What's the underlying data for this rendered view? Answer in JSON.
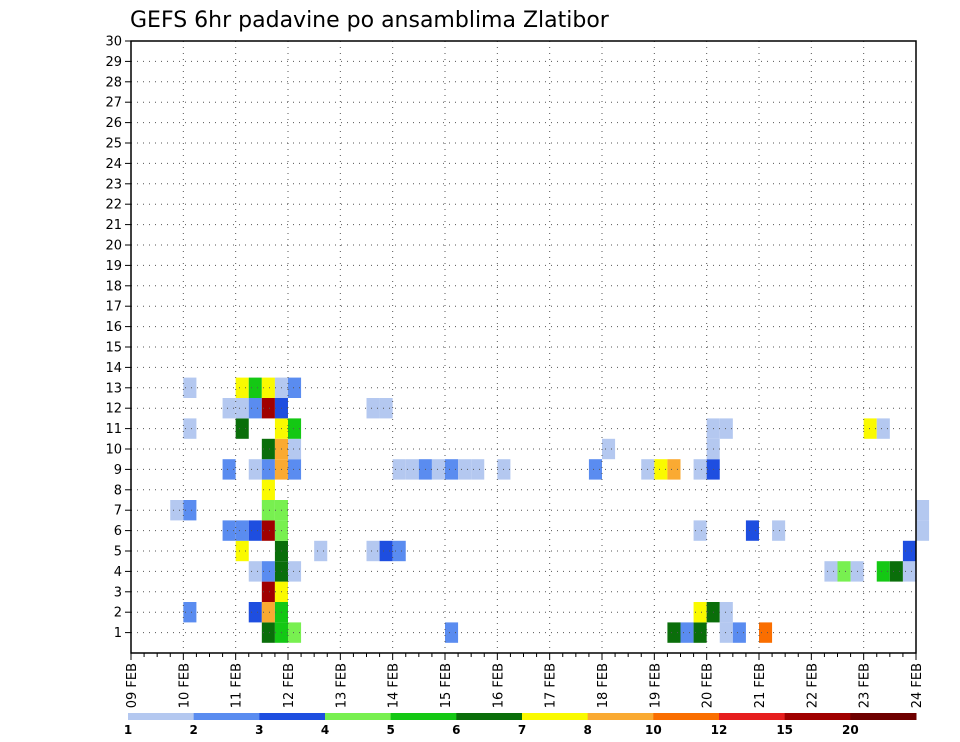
{
  "chart_data": {
    "type": "heatmap",
    "title": "GEFS 6hr padavine po ansamblima Zlatibor",
    "xlabel": "",
    "ylabel": "",
    "x_ticks": [
      "09 FEB",
      "10 FEB",
      "11 FEB",
      "12 FEB",
      "13 FEB",
      "14 FEB",
      "15 FEB",
      "16 FEB",
      "17 FEB",
      "18 FEB",
      "19 FEB",
      "20 FEB",
      "21 FEB",
      "22 FEB",
      "23 FEB",
      "24 FEB"
    ],
    "y_ticks": [
      1,
      2,
      3,
      4,
      5,
      6,
      7,
      8,
      9,
      10,
      11,
      12,
      13,
      14,
      15,
      16,
      17,
      18,
      19,
      20,
      21,
      22,
      23,
      24,
      25,
      26,
      27,
      28,
      29,
      30
    ],
    "ylim": [
      0,
      30
    ],
    "grid": true,
    "colorbar": {
      "levels": [
        "1",
        "2",
        "3",
        "4",
        "5",
        "6",
        "7",
        "8",
        "10",
        "12",
        "15",
        "20"
      ],
      "colors": [
        "#b4c8f0",
        "#5a8cf0",
        "#1e4ee0",
        "#78f050",
        "#14c814",
        "#0a6e0a",
        "#fafa00",
        "#faaa32",
        "#fa6e00",
        "#e61e1e",
        "#a00000",
        "#6e0000"
      ]
    },
    "cells": [
      {
        "x": "11 FEB 12z",
        "member": 0,
        "class": 5
      },
      {
        "x": "11 FEB 18z",
        "member": 0,
        "class": 4
      },
      {
        "x": "12 FEB 00z",
        "member": 0,
        "class": 3
      },
      {
        "x": "15 FEB 00z",
        "member": 0,
        "class": 1
      },
      {
        "x": "19 FEB 06z",
        "member": 0,
        "class": 5
      },
      {
        "x": "19 FEB 12z",
        "member": 0,
        "class": 1
      },
      {
        "x": "19 FEB 18z",
        "member": 0,
        "class": 5
      },
      {
        "x": "20 FEB 06z",
        "member": 0,
        "class": 0
      },
      {
        "x": "20 FEB 12z",
        "member": 0,
        "class": 1
      },
      {
        "x": "21 FEB 00z",
        "member": 0,
        "class": 8
      },
      {
        "x": "10 FEB 00z",
        "member": 1,
        "class": 1
      },
      {
        "x": "11 FEB 06z",
        "member": 1,
        "class": 2
      },
      {
        "x": "11 FEB 12z",
        "member": 1,
        "class": 7
      },
      {
        "x": "11 FEB 18z",
        "member": 1,
        "class": 4
      },
      {
        "x": "19 FEB 18z",
        "member": 1,
        "class": 6
      },
      {
        "x": "20 FEB 00z",
        "member": 1,
        "class": 5
      },
      {
        "x": "20 FEB 06z",
        "member": 1,
        "class": 0
      },
      {
        "x": "11 FEB 12z",
        "member": 2,
        "class": 10
      },
      {
        "x": "11 FEB 18z",
        "member": 2,
        "class": 6
      },
      {
        "x": "11 FEB 06z",
        "member": 3,
        "class": 0
      },
      {
        "x": "11 FEB 12z",
        "member": 3,
        "class": 1
      },
      {
        "x": "11 FEB 18z",
        "member": 3,
        "class": 5
      },
      {
        "x": "12 FEB 00z",
        "member": 3,
        "class": 0
      },
      {
        "x": "22 FEB 06z",
        "member": 3,
        "class": 0
      },
      {
        "x": "22 FEB 12z",
        "member": 3,
        "class": 3
      },
      {
        "x": "22 FEB 18z",
        "member": 3,
        "class": 0
      },
      {
        "x": "23 FEB 06z",
        "member": 3,
        "class": 4
      },
      {
        "x": "23 FEB 12z",
        "member": 3,
        "class": 5
      },
      {
        "x": "23 FEB 18z",
        "member": 3,
        "class": 0
      },
      {
        "x": "11 FEB 00z",
        "member": 4,
        "class": 6
      },
      {
        "x": "11 FEB 18z",
        "member": 4,
        "class": 5
      },
      {
        "x": "12 FEB 12z",
        "member": 4,
        "class": 0
      },
      {
        "x": "13 FEB 12z",
        "member": 4,
        "class": 0
      },
      {
        "x": "13 FEB 18z",
        "member": 4,
        "class": 2
      },
      {
        "x": "14 FEB 00z",
        "member": 4,
        "class": 1
      },
      {
        "x": "23 FEB 18z",
        "member": 4,
        "class": 2
      },
      {
        "x": "10 FEB 18z",
        "member": 5,
        "class": 1
      },
      {
        "x": "11 FEB 00z",
        "member": 5,
        "class": 1
      },
      {
        "x": "11 FEB 06z",
        "member": 5,
        "class": 2
      },
      {
        "x": "11 FEB 12z",
        "member": 5,
        "class": 10
      },
      {
        "x": "11 FEB 18z",
        "member": 5,
        "class": 3
      },
      {
        "x": "19 FEB 18z",
        "member": 5,
        "class": 0
      },
      {
        "x": "20 FEB 18z",
        "member": 5,
        "class": 2
      },
      {
        "x": "21 FEB 06z",
        "member": 5,
        "class": 0
      },
      {
        "x": "24 FEB 00z",
        "member": 5,
        "class": 0
      },
      {
        "x": "09 FEB 18z",
        "member": 6,
        "class": 0
      },
      {
        "x": "10 FEB 00z",
        "member": 6,
        "class": 1
      },
      {
        "x": "11 FEB 12z",
        "member": 6,
        "class": 3
      },
      {
        "x": "11 FEB 18z",
        "member": 6,
        "class": 3
      },
      {
        "x": "24 FEB 00z",
        "member": 6,
        "class": 0
      },
      {
        "x": "11 FEB 12z",
        "member": 7,
        "class": 6
      },
      {
        "x": "10 FEB 18z",
        "member": 8,
        "class": 1
      },
      {
        "x": "11 FEB 06z",
        "member": 8,
        "class": 0
      },
      {
        "x": "11 FEB 12z",
        "member": 8,
        "class": 1
      },
      {
        "x": "11 FEB 18z",
        "member": 8,
        "class": 7
      },
      {
        "x": "12 FEB 00z",
        "member": 8,
        "class": 1
      },
      {
        "x": "14 FEB 00z",
        "member": 8,
        "class": 0
      },
      {
        "x": "14 FEB 06z",
        "member": 8,
        "class": 0
      },
      {
        "x": "14 FEB 12z",
        "member": 8,
        "class": 1
      },
      {
        "x": "14 FEB 18z",
        "member": 8,
        "class": 0
      },
      {
        "x": "15 FEB 00z",
        "member": 8,
        "class": 1
      },
      {
        "x": "15 FEB 06z",
        "member": 8,
        "class": 0
      },
      {
        "x": "15 FEB 12z",
        "member": 8,
        "class": 0
      },
      {
        "x": "16 FEB 00z",
        "member": 8,
        "class": 0
      },
      {
        "x": "17 FEB 18z",
        "member": 8,
        "class": 1
      },
      {
        "x": "18 FEB 18z",
        "member": 8,
        "class": 0
      },
      {
        "x": "19 FEB 00z",
        "member": 8,
        "class": 6
      },
      {
        "x": "19 FEB 06z",
        "member": 8,
        "class": 7
      },
      {
        "x": "19 FEB 18z",
        "member": 8,
        "class": 0
      },
      {
        "x": "20 FEB 00z",
        "member": 8,
        "class": 2
      },
      {
        "x": "11 FEB 12z",
        "member": 9,
        "class": 5
      },
      {
        "x": "11 FEB 18z",
        "member": 9,
        "class": 7
      },
      {
        "x": "12 FEB 00z",
        "member": 9,
        "class": 0
      },
      {
        "x": "18 FEB 00z",
        "member": 9,
        "class": 0
      },
      {
        "x": "20 FEB 00z",
        "member": 9,
        "class": 0
      },
      {
        "x": "10 FEB 00z",
        "member": 10,
        "class": 0
      },
      {
        "x": "11 FEB 00z",
        "member": 10,
        "class": 5
      },
      {
        "x": "11 FEB 18z",
        "member": 10,
        "class": 6
      },
      {
        "x": "12 FEB 00z",
        "member": 10,
        "class": 4
      },
      {
        "x": "20 FEB 00z",
        "member": 10,
        "class": 0
      },
      {
        "x": "20 FEB 06z",
        "member": 10,
        "class": 0
      },
      {
        "x": "23 FEB 00z",
        "member": 10,
        "class": 6
      },
      {
        "x": "23 FEB 06z",
        "member": 10,
        "class": 0
      },
      {
        "x": "10 FEB 18z",
        "member": 11,
        "class": 0
      },
      {
        "x": "11 FEB 00z",
        "member": 11,
        "class": 0
      },
      {
        "x": "11 FEB 06z",
        "member": 11,
        "class": 1
      },
      {
        "x": "11 FEB 12z",
        "member": 11,
        "class": 10
      },
      {
        "x": "11 FEB 18z",
        "member": 11,
        "class": 2
      },
      {
        "x": "13 FEB 12z",
        "member": 11,
        "class": 0
      },
      {
        "x": "13 FEB 18z",
        "member": 11,
        "class": 0
      },
      {
        "x": "10 FEB 00z",
        "member": 12,
        "class": 0
      },
      {
        "x": "11 FEB 00z",
        "member": 12,
        "class": 6
      },
      {
        "x": "11 FEB 06z",
        "member": 12,
        "class": 4
      },
      {
        "x": "11 FEB 12z",
        "member": 12,
        "class": 6
      },
      {
        "x": "11 FEB 18z",
        "member": 12,
        "class": 0
      },
      {
        "x": "12 FEB 00z",
        "member": 12,
        "class": 1
      }
    ]
  }
}
